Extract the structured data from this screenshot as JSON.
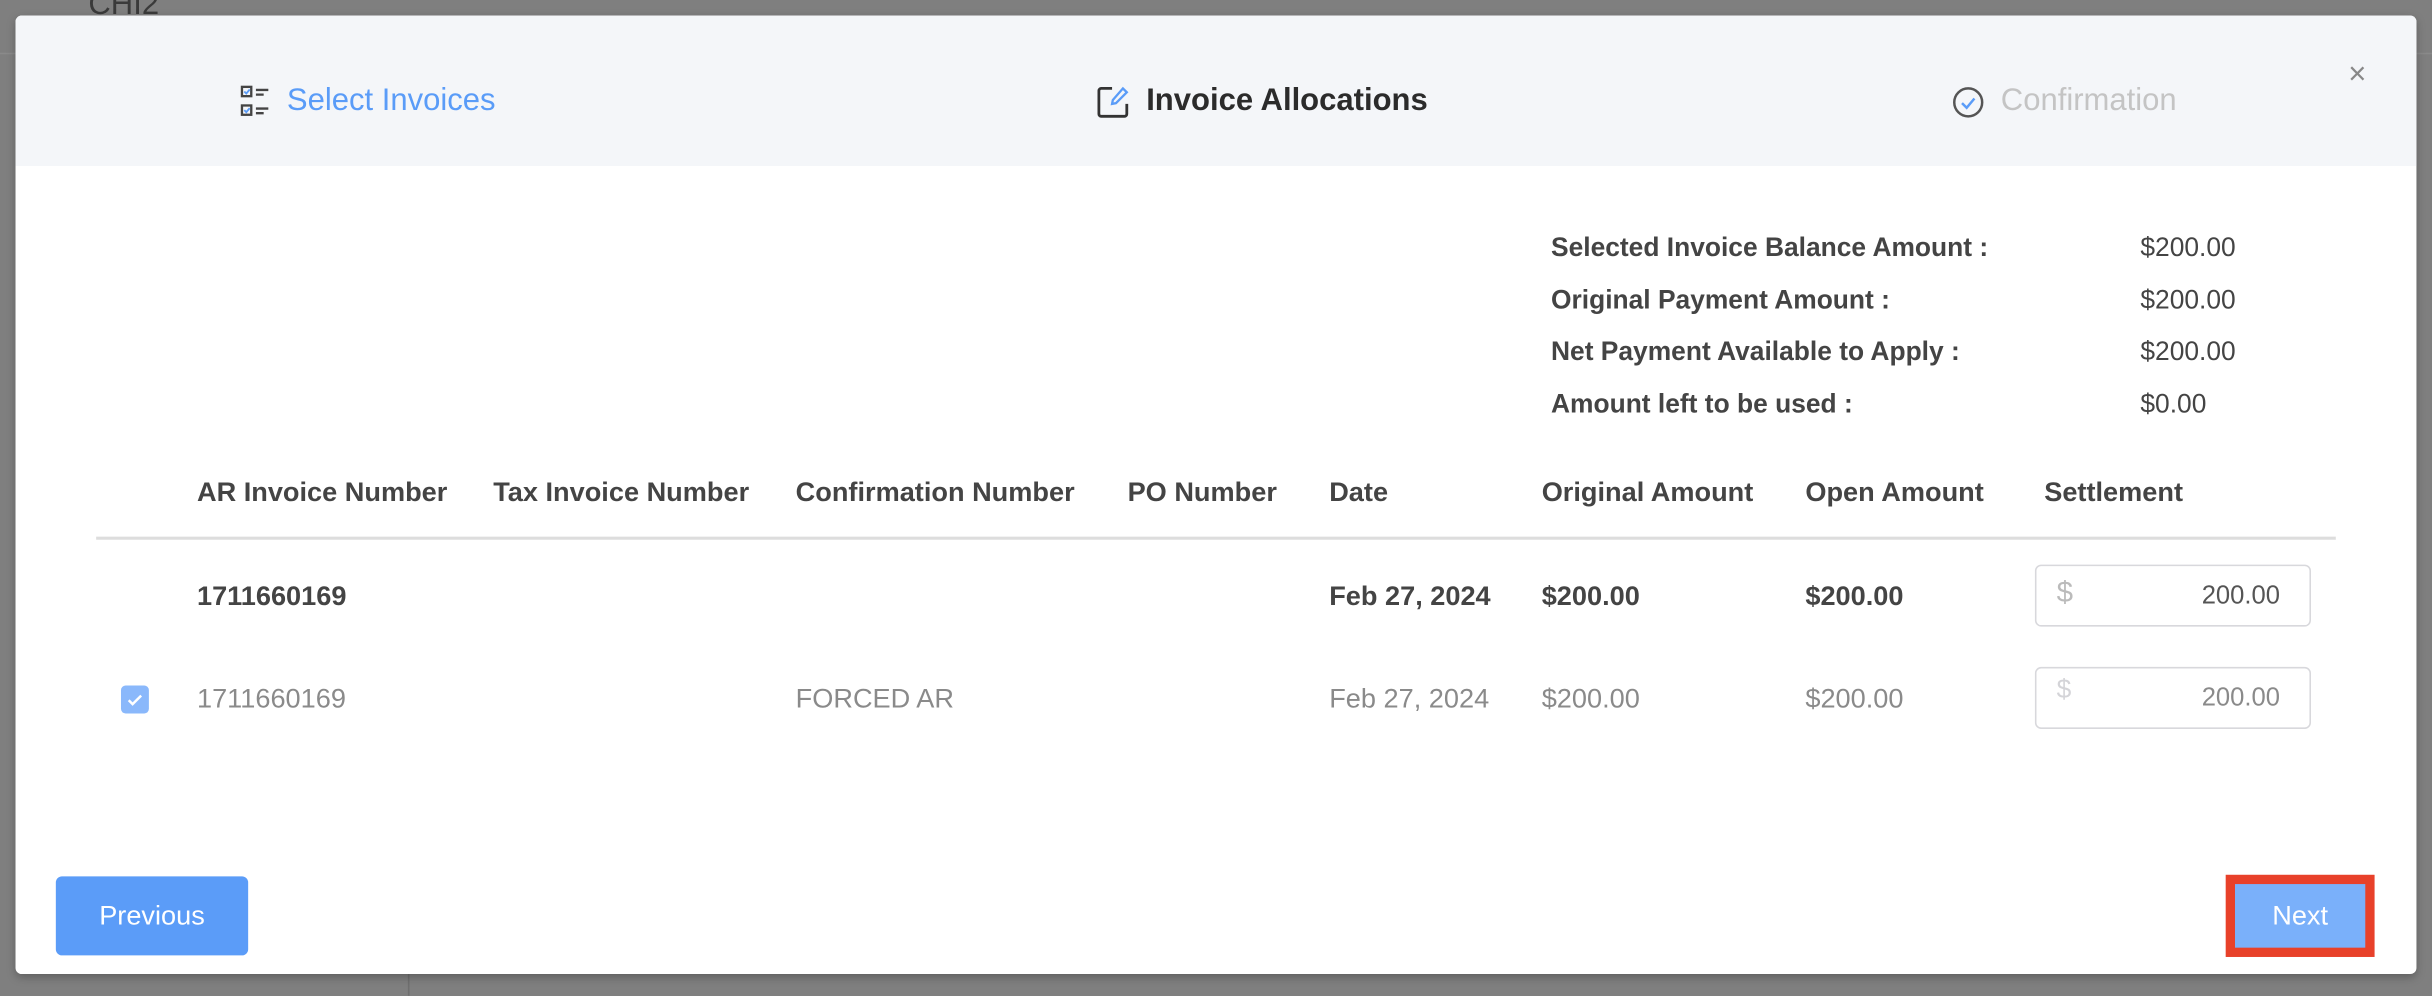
{
  "background": {
    "title": "CHI2"
  },
  "steps": [
    {
      "label": "Select Invoices",
      "state": "completed",
      "icon": "checklist-icon"
    },
    {
      "label": "Invoice Allocations",
      "state": "active",
      "icon": "edit-icon"
    },
    {
      "label": "Confirmation",
      "state": "pending",
      "icon": "check-circle-icon"
    }
  ],
  "close_label": "×",
  "summary": [
    {
      "label": "Selected Invoice Balance Amount :",
      "value": "$200.00"
    },
    {
      "label": "Original Payment Amount :",
      "value": "$200.00"
    },
    {
      "label": "Net Payment Available to Apply :",
      "value": "$200.00"
    },
    {
      "label": "Amount left to be used :",
      "value": "$0.00"
    }
  ],
  "table": {
    "headers": [
      "AR Invoice Number",
      "Tax Invoice Number",
      "Confirmation Number",
      "PO Number",
      "Date",
      "Original Amount",
      "Open Amount",
      "Settlement"
    ],
    "group_row": {
      "ar_invoice": "1711660169",
      "date": "Feb 27, 2024",
      "original": "$200.00",
      "open": "$200.00",
      "currency": "$",
      "settlement": "200.00"
    },
    "rows": [
      {
        "checked": true,
        "ar_invoice": "1711660169",
        "tax_invoice": "",
        "confirmation": "FORCED AR",
        "po": "",
        "date": "Feb 27, 2024",
        "original": "$200.00",
        "open": "$200.00",
        "currency": "$",
        "settlement": "200.00"
      }
    ]
  },
  "buttons": {
    "previous": "Previous",
    "next": "Next"
  },
  "colors": {
    "accent": "#5b9cf8",
    "highlight": "#e8412a",
    "header_bg": "#f4f6f9"
  }
}
